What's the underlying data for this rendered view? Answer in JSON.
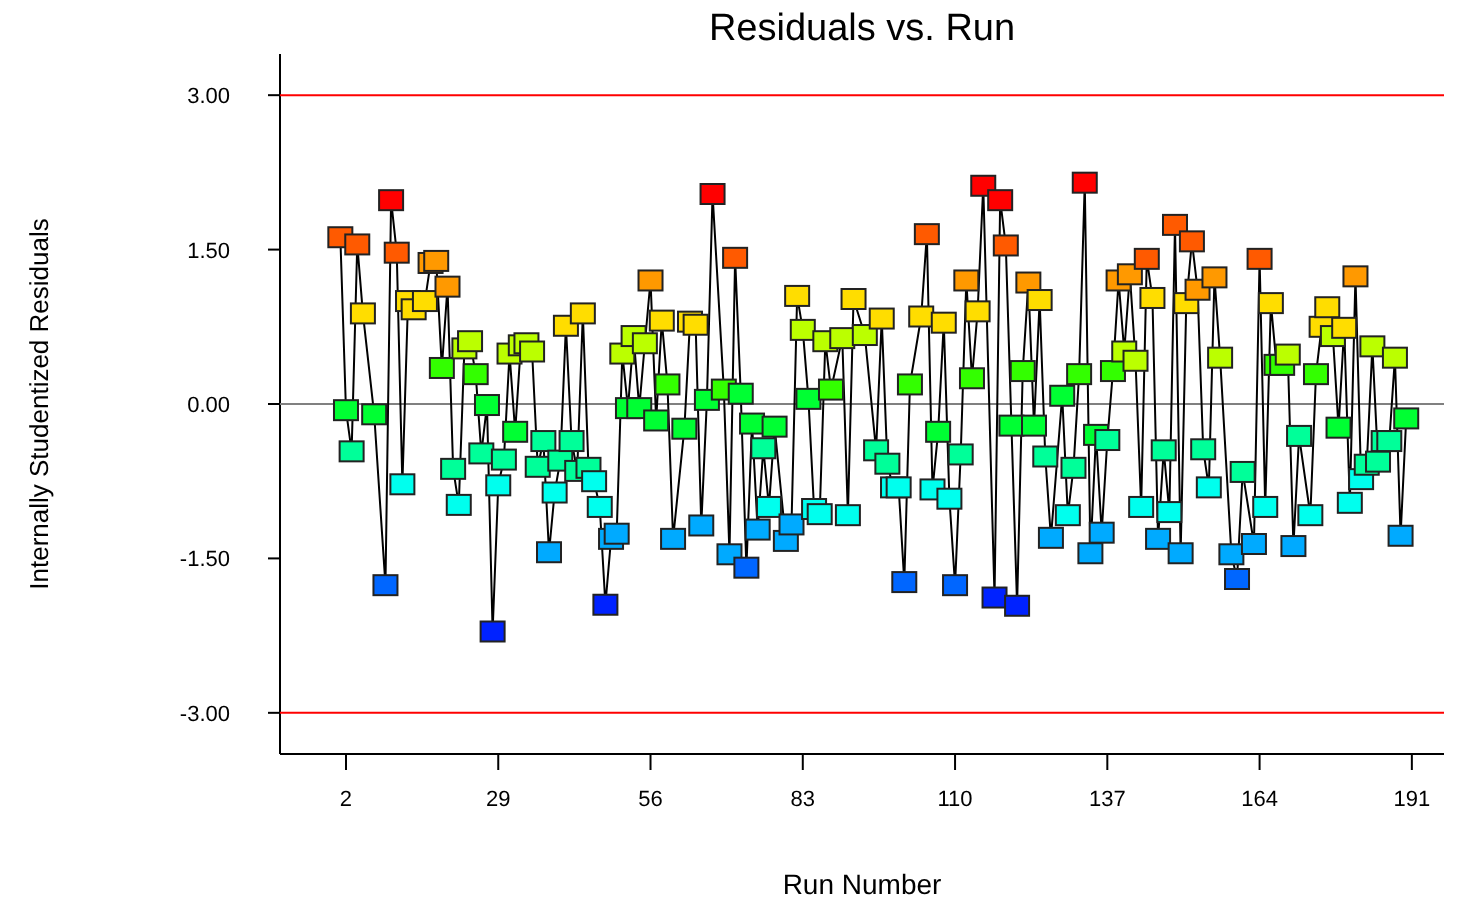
{
  "chart_data": {
    "type": "line",
    "title": "Residuals vs. Run",
    "xlabel": "Run Number",
    "ylabel": "Internally Studentized Residuals",
    "marker": "square",
    "grid": false,
    "xlim": [
      -9.7,
      196.7
    ],
    "ylim": [
      -3.4,
      3.4
    ],
    "xticks": [
      2,
      29,
      56,
      83,
      110,
      137,
      164,
      191
    ],
    "yticks": [
      {
        "value": -3,
        "label": "-3.00"
      },
      {
        "value": -1.5,
        "label": "-1.50"
      },
      {
        "value": 0,
        "label": "0.00"
      },
      {
        "value": 1.5,
        "label": "1.50"
      },
      {
        "value": 3,
        "label": "3.00"
      }
    ],
    "ref_lines": [
      {
        "axis": "y",
        "value": 3,
        "color": "#ff0000"
      },
      {
        "axis": "y",
        "value": -3,
        "color": "#ff0000"
      },
      {
        "axis": "y",
        "value": 0,
        "color": "#808080"
      }
    ],
    "series": [
      {
        "color": "#000000",
        "x": [
          1,
          2,
          3,
          4,
          5,
          7,
          9,
          10,
          11,
          12,
          13,
          14,
          16,
          17,
          18,
          19,
          20,
          21,
          22,
          23,
          24,
          25,
          26,
          27,
          28,
          29,
          30,
          31,
          32,
          33,
          34,
          35,
          36,
          37,
          38,
          39,
          40,
          41,
          42,
          43,
          44,
          45,
          46,
          47,
          48,
          49,
          50,
          51,
          52,
          53,
          54,
          55,
          56,
          57,
          58,
          59,
          60,
          62,
          63,
          64,
          65,
          66,
          67,
          69,
          70,
          71,
          72,
          73,
          74,
          75,
          76,
          77,
          78,
          80,
          81,
          82,
          83,
          84,
          85,
          86,
          87,
          88,
          90,
          91,
          92,
          94,
          96,
          97,
          98,
          99,
          100,
          101,
          102,
          104,
          105,
          106,
          107,
          108,
          109,
          110,
          111,
          112,
          113,
          114,
          115,
          117,
          118,
          119,
          120,
          121,
          122,
          123,
          124,
          125,
          126,
          127,
          129,
          130,
          131,
          132,
          133,
          134,
          135,
          136,
          137,
          138,
          139,
          140,
          141,
          142,
          143,
          144,
          145,
          146,
          147,
          148,
          149,
          150,
          151,
          152,
          153,
          154,
          155,
          156,
          157,
          159,
          160,
          161,
          163,
          164,
          165,
          166,
          167,
          168,
          169,
          170,
          171,
          173,
          174,
          175,
          176,
          177,
          178,
          179,
          180,
          181,
          182,
          183,
          184,
          185,
          186,
          187,
          188,
          189,
          190
        ],
        "values": [
          1.62,
          -0.06,
          -0.46,
          1.55,
          0.88,
          -0.1,
          -1.76,
          1.98,
          1.47,
          -0.78,
          1.0,
          0.92,
          1.0,
          1.37,
          1.39,
          0.35,
          1.14,
          -0.63,
          -0.98,
          0.54,
          0.61,
          0.29,
          -0.48,
          -0.01,
          -2.21,
          -0.79,
          -0.54,
          0.49,
          -0.27,
          0.57,
          0.59,
          0.51,
          -0.61,
          -0.36,
          -1.44,
          -0.86,
          -0.55,
          0.76,
          -0.36,
          -0.65,
          0.88,
          -0.62,
          -0.75,
          -1.0,
          -1.95,
          -1.31,
          -1.26,
          0.49,
          -0.04,
          0.66,
          -0.04,
          0.59,
          1.2,
          -0.16,
          0.81,
          0.19,
          -1.31,
          -0.24,
          0.8,
          0.77,
          -1.18,
          0.04,
          2.04,
          0.14,
          -1.46,
          1.42,
          0.1,
          -1.59,
          -0.19,
          -1.22,
          -0.43,
          -1.0,
          -0.22,
          -1.33,
          -1.17,
          1.05,
          0.72,
          0.05,
          -1.02,
          -1.07,
          0.61,
          0.14,
          0.64,
          -1.08,
          1.02,
          0.67,
          -0.45,
          0.83,
          -0.58,
          -0.81,
          -0.81,
          -1.73,
          0.19,
          0.85,
          1.65,
          -0.83,
          -0.27,
          0.79,
          -0.92,
          -1.76,
          -0.49,
          1.2,
          0.25,
          0.9,
          2.12,
          -1.88,
          1.98,
          1.54,
          -0.21,
          -1.96,
          0.32,
          1.18,
          -0.21,
          1.01,
          -0.51,
          -1.3,
          0.08,
          -1.08,
          -0.62,
          0.29,
          2.15,
          -1.45,
          -0.3,
          -1.25,
          -0.35,
          0.32,
          1.2,
          0.51,
          1.26,
          0.42,
          -1.0,
          1.41,
          1.03,
          -1.31,
          -0.45,
          -1.05,
          1.74,
          -1.45,
          0.98,
          1.58,
          1.11,
          -0.44,
          -0.81,
          1.23,
          0.45,
          -1.46,
          -1.7,
          -0.66,
          -1.36,
          1.41,
          -1.0,
          0.98,
          0.38,
          0.38,
          0.48,
          -1.38,
          -0.31,
          -1.08,
          0.29,
          0.75,
          0.94,
          0.66,
          -0.23,
          0.74,
          -0.96,
          1.24,
          -0.73,
          -0.59,
          0.56,
          -0.56,
          -0.36,
          -0.36,
          0.45,
          -1.28,
          -0.14
        ],
        "colors": [
          "#ff5a00",
          "#00ff33",
          "#00ff99",
          "#ff5a00",
          "#ffdd00",
          "#00ff33",
          "#0066ff",
          "#ff0000",
          "#ff5a00",
          "#00ffee",
          "#ffdd00",
          "#ffdd00",
          "#ffdd00",
          "#ff9900",
          "#ff9900",
          "#33ff00",
          "#ff9900",
          "#00ff99",
          "#00ffee",
          "#bbff00",
          "#bbff00",
          "#33ff00",
          "#00ff99",
          "#00ff33",
          "#0022ff",
          "#00ffee",
          "#00ff99",
          "#bbff00",
          "#00ff33",
          "#bbff00",
          "#bbff00",
          "#bbff00",
          "#00ff99",
          "#00ff99",
          "#00aaff",
          "#00ffee",
          "#00ff99",
          "#ffdd00",
          "#00ff99",
          "#00ff99",
          "#ffdd00",
          "#00ff99",
          "#00ffee",
          "#00ffee",
          "#0022ff",
          "#00aaff",
          "#00aaff",
          "#bbff00",
          "#00ff33",
          "#bbff00",
          "#00ff33",
          "#bbff00",
          "#ff9900",
          "#00ff33",
          "#ffdd00",
          "#33ff00",
          "#00aaff",
          "#00ff33",
          "#ffdd00",
          "#ffdd00",
          "#00aaff",
          "#00ff33",
          "#ff0000",
          "#33ff00",
          "#00aaff",
          "#ff5a00",
          "#00ff33",
          "#0066ff",
          "#00ff33",
          "#00aaff",
          "#00ff99",
          "#00ffee",
          "#00ff33",
          "#00aaff",
          "#00aaff",
          "#ffdd00",
          "#bbff00",
          "#00ff33",
          "#00ffee",
          "#00ffee",
          "#bbff00",
          "#33ff00",
          "#bbff00",
          "#00ffee",
          "#ffdd00",
          "#bbff00",
          "#00ff99",
          "#ffdd00",
          "#00ff99",
          "#00ffee",
          "#00ffee",
          "#0066ff",
          "#33ff00",
          "#ffdd00",
          "#ff5a00",
          "#00ffee",
          "#00ff33",
          "#ffdd00",
          "#00ffee",
          "#0066ff",
          "#00ff99",
          "#ff9900",
          "#33ff00",
          "#ffdd00",
          "#ff0000",
          "#0022ff",
          "#ff0000",
          "#ff5a00",
          "#00ff33",
          "#0022ff",
          "#33ff00",
          "#ff9900",
          "#00ff33",
          "#ffdd00",
          "#00ff99",
          "#00aaff",
          "#00ff33",
          "#00ffee",
          "#00ff99",
          "#33ff00",
          "#ff0000",
          "#00aaff",
          "#00ff33",
          "#00aaff",
          "#00ff99",
          "#33ff00",
          "#ff9900",
          "#bbff00",
          "#ff9900",
          "#bbff00",
          "#00ffee",
          "#ff5a00",
          "#ffdd00",
          "#00aaff",
          "#00ff99",
          "#00ffee",
          "#ff5a00",
          "#00aaff",
          "#ffdd00",
          "#ff5a00",
          "#ff9900",
          "#00ff99",
          "#00ffee",
          "#ff9900",
          "#bbff00",
          "#00aaff",
          "#0066ff",
          "#00ff99",
          "#00aaff",
          "#ff5a00",
          "#00ffee",
          "#ffdd00",
          "#33ff00",
          "#33ff00",
          "#bbff00",
          "#00aaff",
          "#00ff99",
          "#00ffee",
          "#33ff00",
          "#ffdd00",
          "#ffdd00",
          "#bbff00",
          "#00ff33",
          "#ffdd00",
          "#00ffee",
          "#ff9900",
          "#00ffee",
          "#00ff99",
          "#bbff00",
          "#00ff99",
          "#00ff99",
          "#00ff99",
          "#bbff00",
          "#00aaff",
          "#00ff33"
        ]
      }
    ]
  }
}
